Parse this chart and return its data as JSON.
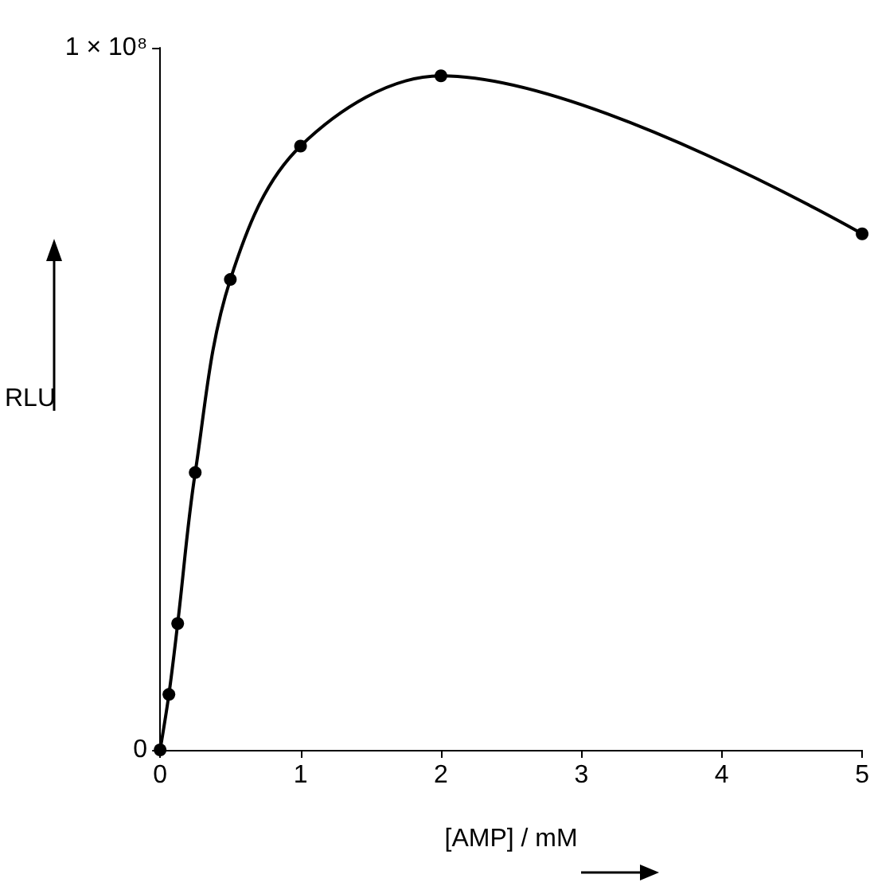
{
  "chart_data": {
    "type": "line",
    "xlabel": "[AMP] / mM",
    "ylabel": "RLU",
    "x": [
      0,
      0.0625,
      0.125,
      0.25,
      0.5,
      1,
      2,
      5
    ],
    "series": [
      {
        "color": "#000000",
        "values": [
          0,
          7900000,
          18000000,
          39500000,
          67000000,
          86000000,
          96000000,
          73500000
        ]
      }
    ],
    "xlim": [
      0,
      5
    ],
    "xticks": [
      0,
      1,
      2,
      3,
      4,
      5
    ],
    "ylim": [
      0,
      100000000
    ],
    "yticks": [
      0,
      {
        "value": 100000000,
        "label": "1 × 10⁸"
      }
    ],
    "grid": false,
    "marker": "circle",
    "line_style": "solid"
  }
}
